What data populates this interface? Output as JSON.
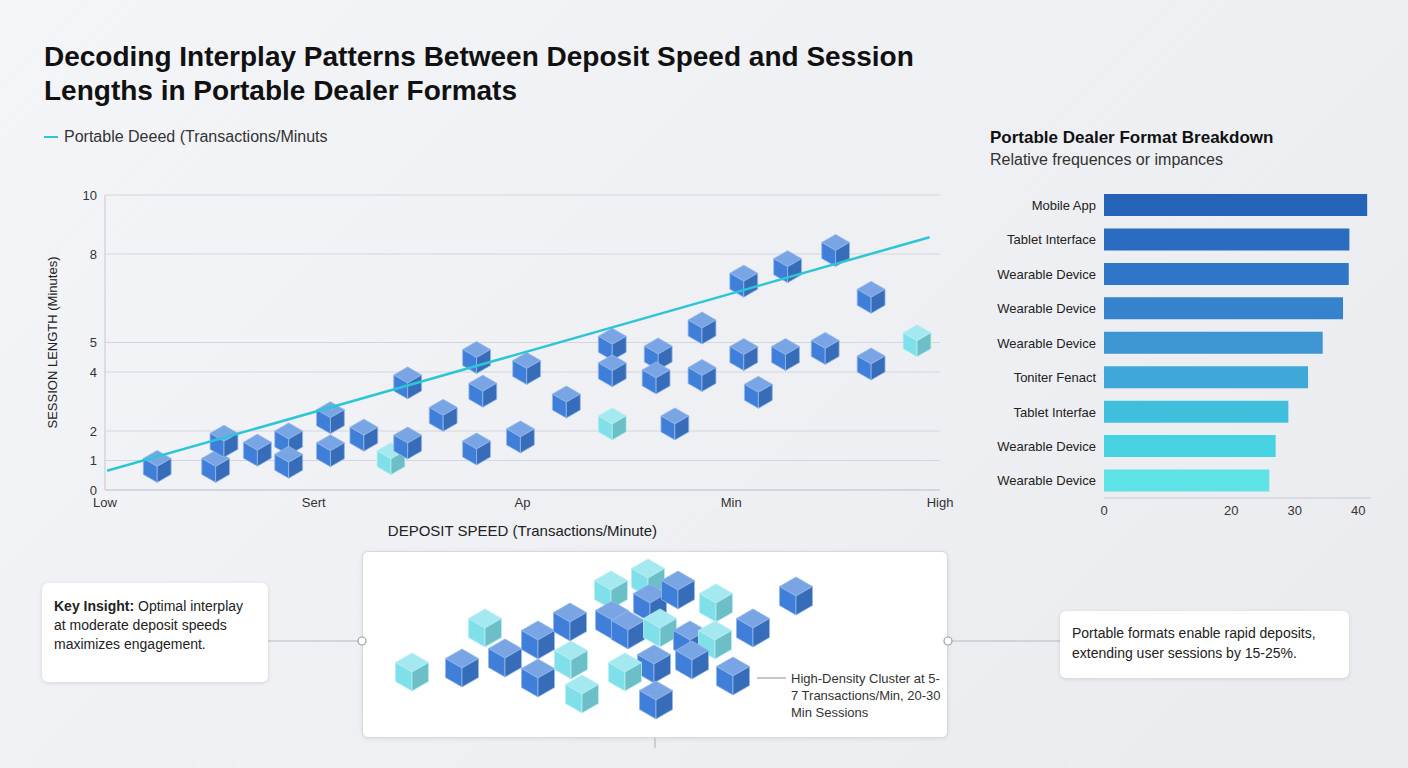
{
  "chart_data": [
    {
      "type": "scatter",
      "title": "Decoding Interplay Patterns Between Deposit Speed and Session Lengths in Portable Dealer Formats",
      "x_label": "DEPOSIT SPEED (Transactions/Minute)",
      "y_label": "SESSION LENGTH (Minutes)",
      "xlim": [
        0,
        4
      ],
      "xticks": [
        {
          "value": 0,
          "label": "Low"
        },
        {
          "value": 1,
          "label": "Sert"
        },
        {
          "value": 2,
          "label": "Ap"
        },
        {
          "value": 3,
          "label": "Min"
        },
        {
          "value": 4,
          "label": "High"
        }
      ],
      "ylim": [
        0,
        10
      ],
      "yticks": [
        0,
        1,
        2,
        4,
        5,
        8,
        10
      ],
      "grid": true,
      "legend": "top left",
      "series": [
        {
          "type": "scatter",
          "marker": "cube",
          "x": [
            0.25,
            0.53,
            0.57,
            0.73,
            0.88,
            0.88,
            1.08,
            1.08,
            1.24,
            1.37,
            1.45,
            1.45,
            1.62,
            1.78,
            1.81,
            1.78,
            2.02,
            1.99,
            2.21,
            2.43,
            2.43,
            2.43,
            2.65,
            2.64,
            2.73,
            2.86,
            2.86,
            3.06,
            3.06,
            3.13,
            3.26,
            3.27,
            3.45,
            3.5,
            3.67,
            3.67,
            3.89
          ],
          "values": [
            0.8,
            0.8,
            1.65,
            1.35,
            1.73,
            0.94,
            2.45,
            1.33,
            1.86,
            1.06,
            3.63,
            1.59,
            2.53,
            4.49,
            3.35,
            1.39,
            4.12,
            1.8,
            2.98,
            2.24,
            4.94,
            4.04,
            4.61,
            3.8,
            2.24,
            3.88,
            5.49,
            7.08,
            4.59,
            3.31,
            4.59,
            7.57,
            4.8,
            8.12,
            6.53,
            4.27,
            5.06
          ],
          "colors": [
            "#3f7fd9",
            "#3f7fd9",
            "#3f7fd9",
            "#3f7fd9",
            "#3f7fd9",
            "#3f7fd9",
            "#3f7fd9",
            "#3f7fd9",
            "#3f7fd9",
            "#7fe0ea",
            "#3f7fd9",
            "#3f7fd9",
            "#3f7fd9",
            "#3f7fd9",
            "#3f7fd9",
            "#3f7fd9",
            "#3f7fd9",
            "#3f7fd9",
            "#3f7fd9",
            "#7fe0ea",
            "#3f7fd9",
            "#3f7fd9",
            "#3f7fd9",
            "#3f7fd9",
            "#3f7fd9",
            "#3f7fd9",
            "#3f7fd9",
            "#3f7fd9",
            "#3f7fd9",
            "#3f7fd9",
            "#3f7fd9",
            "#3f7fd9",
            "#3f7fd9",
            "#3f7fd9",
            "#3f7fd9",
            "#3f7fd9",
            "#7fe0ea"
          ]
        },
        {
          "type": "line",
          "name": "Portable Deeed (Transactions/Minuts",
          "color": "#2ec6d6",
          "line_style": "solid",
          "x": [
            0.01,
            3.95
          ],
          "values": [
            0.65,
            8.57
          ]
        }
      ],
      "annotations": [
        {
          "label": "Key Insight:",
          "text": "Optimal interplay at moderate deposit speeds maximizes engagement."
        },
        {
          "text": "High-Density Cluster at 5-7 Transactions/Min, 20-30 Min Sessions"
        },
        {
          "text": "Portable formats enable rapid deposits, extending user sessions by 15-25%."
        }
      ]
    },
    {
      "type": "bar",
      "orientation": "horizontal",
      "title": "Portable Dealer Format Breakdown",
      "subtitle": "Relative frequences or impances",
      "categories": [
        "Mobile App",
        "Tablet Interface",
        "Wearable Device",
        "Wearable Device",
        "Wearable Device",
        "Toniter Fenact",
        "Tablet Interfae",
        "Wearable Device",
        "Wearable Device"
      ],
      "values": [
        41.4,
        38.6,
        38.5,
        37.6,
        34.4,
        32.1,
        29.0,
        27.0,
        26.0
      ],
      "colors": [
        "#2563b8",
        "#2a6cc0",
        "#2f76c8",
        "#3582cd",
        "#3d95d3",
        "#3fa8d8",
        "#3fbfdc",
        "#46d2e0",
        "#5ee3e6"
      ],
      "xlim": [
        0,
        42
      ],
      "xticks": [
        0,
        20,
        30,
        40
      ],
      "grid": false
    }
  ]
}
